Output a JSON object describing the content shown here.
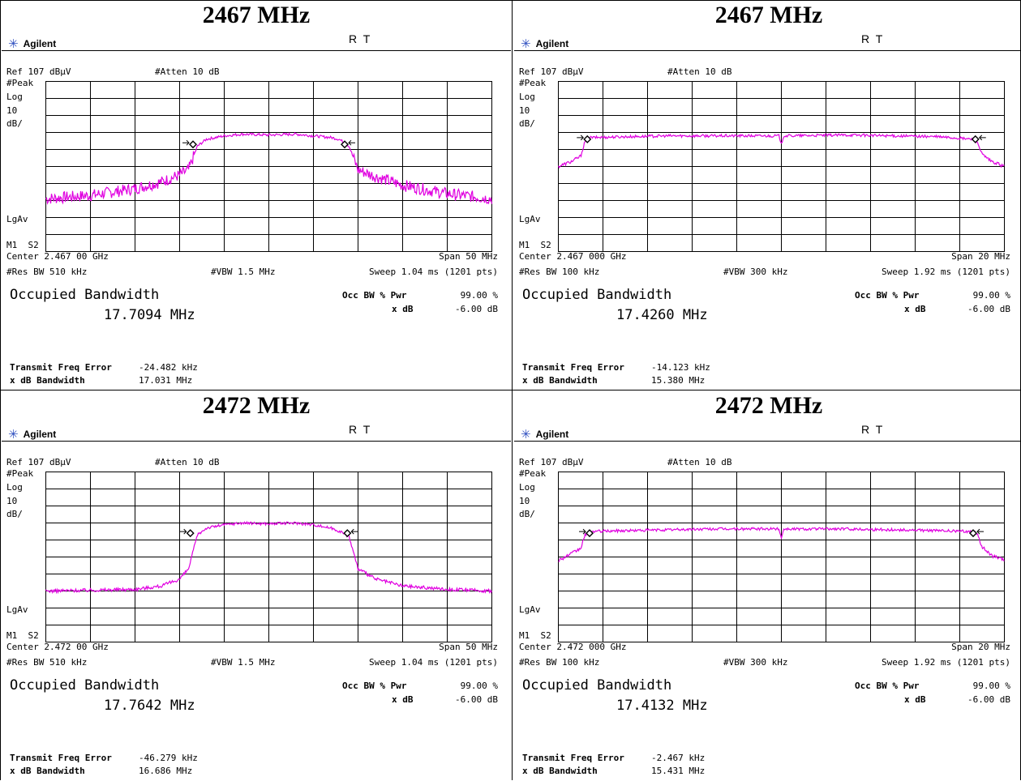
{
  "panels": [
    {
      "title": "2467 MHz",
      "brand": "Agilent",
      "mode": "R   T",
      "ref": "Ref 107 dBµV",
      "atten": "#Atten 10 dB",
      "detector": "#Peak",
      "scale_type": "Log",
      "scale_value": "10",
      "scale_unit": "dB/",
      "avg": "LgAv",
      "marker_label": "M1  S2",
      "center": "Center 2.467 00 GHz",
      "span": "Span 50 MHz",
      "res_bw": "#Res BW 510 kHz",
      "vbw": "#VBW 1.5 MHz",
      "sweep": "Sweep 1.04 ms (1201 pts)",
      "ocb_label": "Occupied Bandwidth",
      "ocb_value": "17.7094 MHz",
      "occ_pwr_label": "Occ BW % Pwr",
      "occ_pwr_value": "99.00 %",
      "xdb_label": "x dB",
      "xdb_value": "-6.00 dB",
      "tfe_label": "Transmit Freq Error",
      "tfe_value": "-24.482 kHz",
      "xbw_label": "x dB Bandwidth",
      "xbw_value": "17.031 MHz"
    },
    {
      "title": "2467 MHz",
      "brand": "Agilent",
      "mode": "R   T",
      "ref": "Ref 107 dBµV",
      "atten": "#Atten 10 dB",
      "detector": "#Peak",
      "scale_type": "Log",
      "scale_value": "10",
      "scale_unit": "dB/",
      "avg": "LgAv",
      "marker_label": "M1  S2",
      "center": "Center 2.467 000 GHz",
      "span": "Span 20 MHz",
      "res_bw": "#Res BW 100 kHz",
      "vbw": "#VBW 300 kHz",
      "sweep": "Sweep 1.92 ms (1201 pts)",
      "ocb_label": "Occupied Bandwidth",
      "ocb_value": "17.4260 MHz",
      "occ_pwr_label": "Occ BW % Pwr",
      "occ_pwr_value": "99.00 %",
      "xdb_label": "x dB",
      "xdb_value": "-6.00 dB",
      "tfe_label": "Transmit Freq Error",
      "tfe_value": "-14.123 kHz",
      "xbw_label": "x dB Bandwidth",
      "xbw_value": "15.380 MHz"
    },
    {
      "title": "2472 MHz",
      "brand": "Agilent",
      "mode": "R   T",
      "ref": "Ref 107 dBµV",
      "atten": "#Atten 10 dB",
      "detector": "#Peak",
      "scale_type": "Log",
      "scale_value": "10",
      "scale_unit": "dB/",
      "avg": "LgAv",
      "marker_label": "M1  S2",
      "center": "Center 2.472 00 GHz",
      "span": "Span 50 MHz",
      "res_bw": "#Res BW 510 kHz",
      "vbw": "#VBW 1.5 MHz",
      "sweep": "Sweep 1.04 ms (1201 pts)",
      "ocb_label": "Occupied Bandwidth",
      "ocb_value": "17.7642 MHz",
      "occ_pwr_label": "Occ BW % Pwr",
      "occ_pwr_value": "99.00 %",
      "xdb_label": "x dB",
      "xdb_value": "-6.00 dB",
      "tfe_label": "Transmit Freq Error",
      "tfe_value": "-46.279 kHz",
      "xbw_label": "x dB Bandwidth",
      "xbw_value": "16.686 MHz"
    },
    {
      "title": "2472 MHz",
      "brand": "Agilent",
      "mode": "R   T",
      "ref": "Ref 107 dBµV",
      "atten": "#Atten 10 dB",
      "detector": "#Peak",
      "scale_type": "Log",
      "scale_value": "10",
      "scale_unit": "dB/",
      "avg": "LgAv",
      "marker_label": "M1  S2",
      "center": "Center 2.472 000 GHz",
      "span": "Span 20 MHz",
      "res_bw": "#Res BW 100 kHz",
      "vbw": "#VBW 300 kHz",
      "sweep": "Sweep 1.92 ms (1201 pts)",
      "ocb_label": "Occupied Bandwidth",
      "ocb_value": "17.4132 MHz",
      "occ_pwr_label": "Occ BW % Pwr",
      "occ_pwr_value": "99.00 %",
      "xdb_label": "x dB",
      "xdb_value": "-6.00 dB",
      "tfe_label": "Transmit Freq Error",
      "tfe_value": "-2.467 kHz",
      "xbw_label": "x dB Bandwidth",
      "xbw_value": "15.431 MHz"
    }
  ],
  "chart_data": [
    {
      "type": "line",
      "ref_level_dbuv": 107,
      "div_db": 10,
      "ylim": [
        7,
        107
      ],
      "x_center_ghz": 2.467,
      "x_span_mhz": 50,
      "xlim_mhz": [
        -25,
        25
      ],
      "grid": true,
      "trace_color": "#e000e0",
      "series": [
        {
          "x": [
            -25,
            -20,
            -15,
            -12,
            -10,
            -9,
            -8,
            -7,
            -5,
            -3,
            0,
            3,
            5,
            7,
            7.9,
            9,
            10,
            12,
            15,
            20,
            25
          ],
          "y": [
            38,
            40,
            44,
            48,
            52,
            55,
            69,
            73,
            75,
            76,
            75.5,
            76,
            75,
            74,
            73,
            69,
            55,
            51,
            46,
            41,
            38
          ]
        }
      ],
      "markers": [
        {
          "x": -8.5,
          "y": 70
        },
        {
          "x": 8.5,
          "y": 70
        }
      ]
    },
    {
      "type": "line",
      "ref_level_dbuv": 107,
      "div_db": 10,
      "ylim": [
        7,
        107
      ],
      "x_center_ghz": 2.467,
      "x_span_mhz": 20,
      "xlim_mhz": [
        -10,
        10
      ],
      "grid": true,
      "trace_color": "#e000e0",
      "series": [
        {
          "x": [
            -10,
            -9.4,
            -9.0,
            -8.8,
            -8.6,
            -7,
            -5,
            -3,
            -0.1,
            0,
            0.1,
            3,
            5,
            7,
            8.6,
            8.8,
            9.0,
            9.4,
            10
          ],
          "y": [
            57,
            60,
            63,
            72,
            74,
            74.5,
            75,
            75,
            75,
            70,
            75,
            75.5,
            75,
            74.5,
            73,
            71,
            64,
            60,
            57
          ]
        }
      ],
      "markers": [
        {
          "x": -8.7,
          "y": 73
        },
        {
          "x": 8.7,
          "y": 73
        }
      ]
    },
    {
      "type": "line",
      "ref_level_dbuv": 107,
      "div_db": 10,
      "ylim": [
        7,
        107
      ],
      "x_center_ghz": 2.472,
      "x_span_mhz": 50,
      "xlim_mhz": [
        -25,
        25
      ],
      "grid": true,
      "trace_color": "#e000e0",
      "series": [
        {
          "x": [
            -25,
            -20,
            -15,
            -12,
            -10,
            -9,
            -8,
            -7,
            -5,
            -3,
            0,
            3,
            5,
            7,
            8,
            9,
            10,
            12,
            15,
            20,
            25
          ],
          "y": [
            37,
            37.5,
            38,
            40,
            44,
            50,
            70,
            74,
            76,
            77,
            76.5,
            77,
            76,
            74,
            72,
            69,
            50,
            44,
            40,
            38,
            37
          ]
        }
      ],
      "markers": [
        {
          "x": -8.8,
          "y": 71
        },
        {
          "x": 8.8,
          "y": 71
        }
      ]
    },
    {
      "type": "line",
      "ref_level_dbuv": 107,
      "div_db": 10,
      "ylim": [
        7,
        107
      ],
      "x_center_ghz": 2.472,
      "x_span_mhz": 20,
      "xlim_mhz": [
        -10,
        10
      ],
      "grid": true,
      "trace_color": "#e000e0",
      "series": [
        {
          "x": [
            -10,
            -9.4,
            -9.0,
            -8.8,
            -8.6,
            -7,
            -5,
            -3,
            -0.1,
            0,
            0.1,
            3,
            5,
            7,
            8.6,
            8.8,
            9.0,
            9.4,
            10
          ],
          "y": [
            55,
            59,
            62,
            70,
            72,
            72.5,
            73,
            73.5,
            73.5,
            68,
            73.5,
            73.5,
            73,
            72.5,
            72,
            70,
            63,
            58,
            55
          ]
        }
      ],
      "markers": [
        {
          "x": -8.6,
          "y": 71
        },
        {
          "x": 8.6,
          "y": 71
        }
      ]
    }
  ]
}
